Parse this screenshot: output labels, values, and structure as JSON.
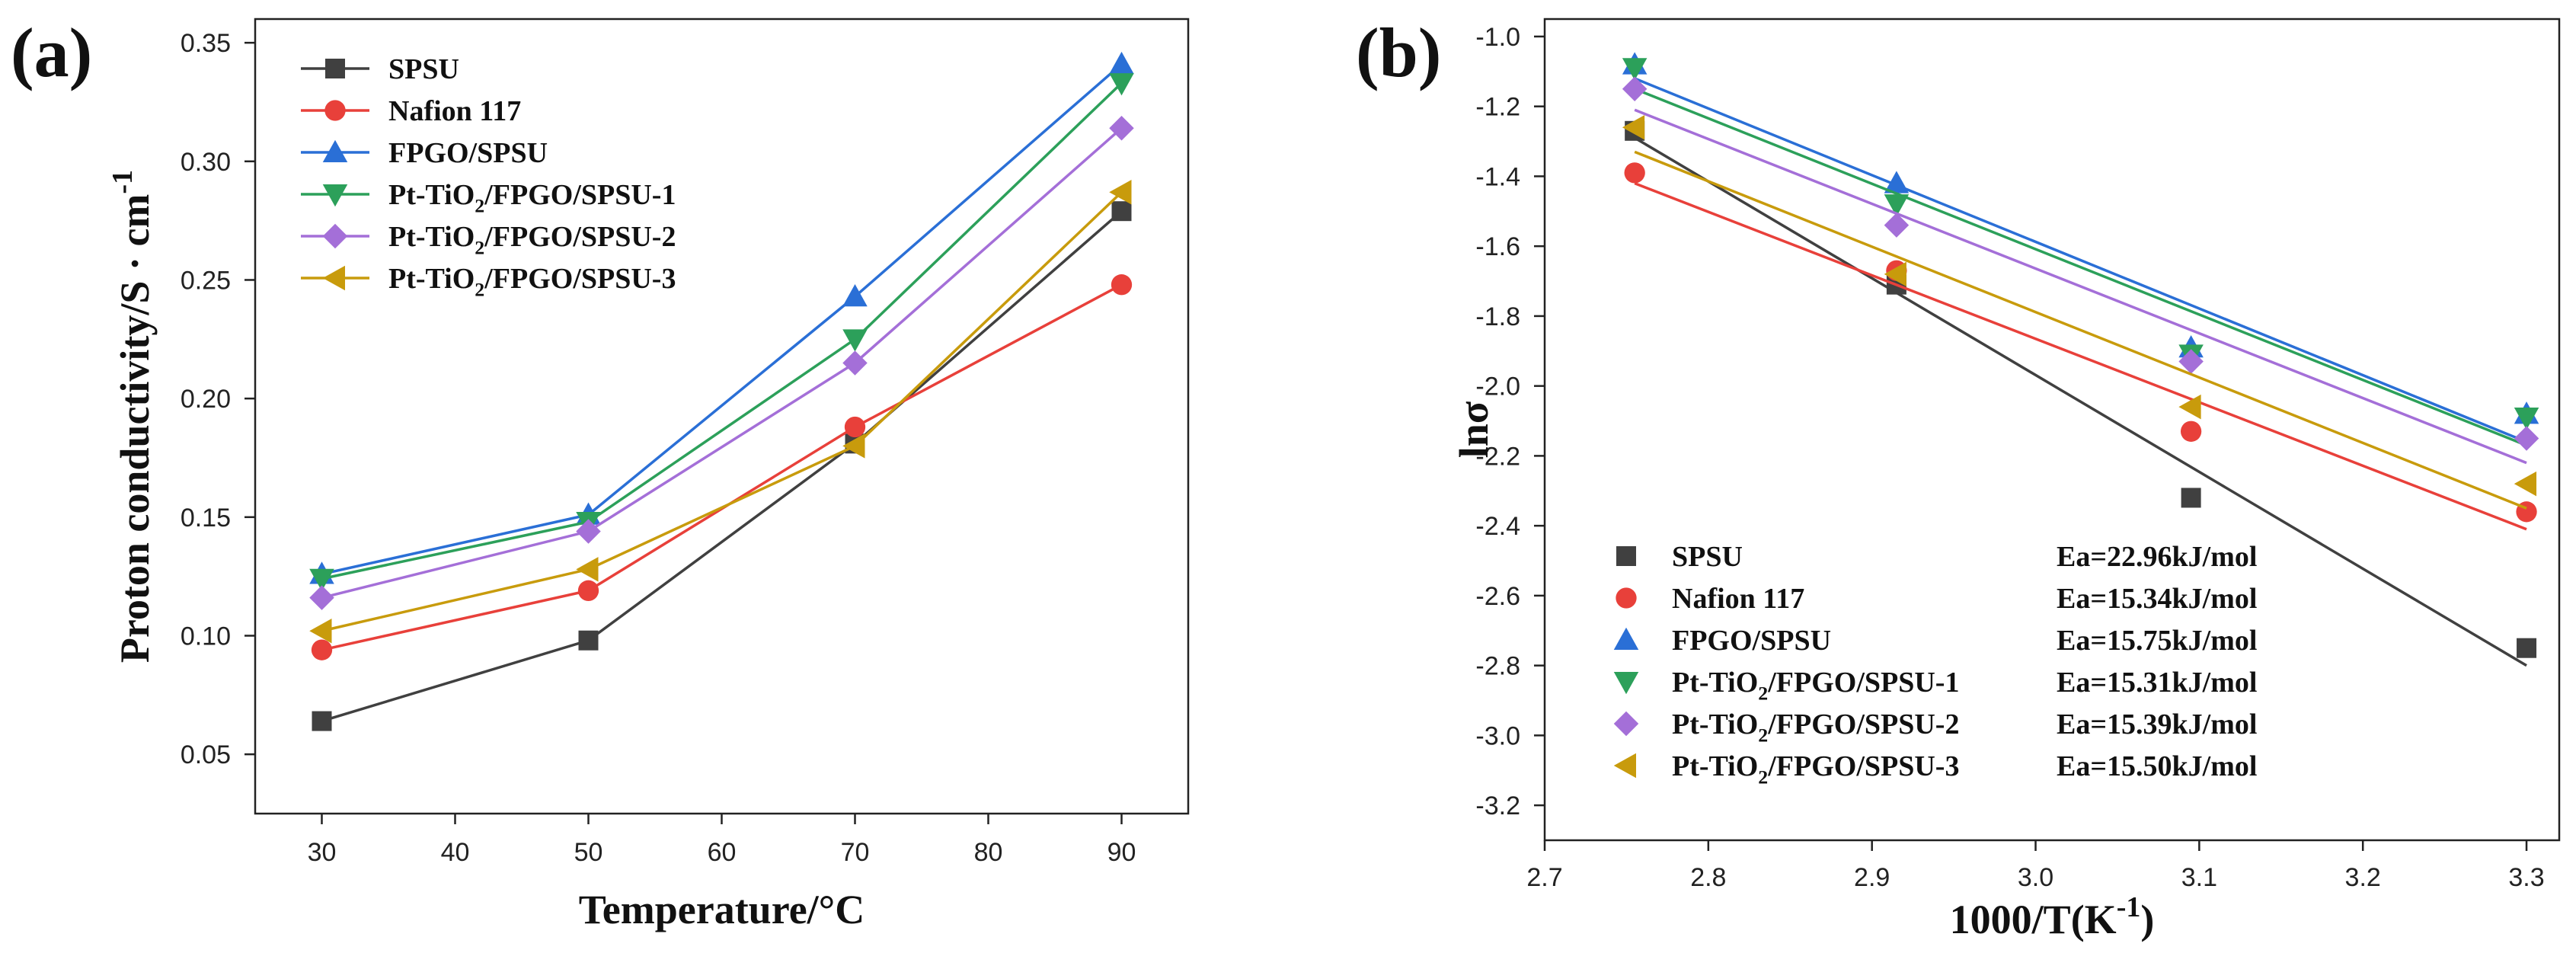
{
  "colors": {
    "SPSU": "#404040",
    "Nafion 117": "#e8403a",
    "FPGO/SPSU": "#2a6fd6",
    "Pt-TiO2/FPGO/SPSU-1": "#2ca05a",
    "Pt-TiO2/FPGO/SPSU-2": "#a46fd8",
    "Pt-TiO2/FPGO/SPSU-3": "#c89b0c"
  },
  "chart_data": [
    {
      "panel_label": "(a)",
      "type": "line",
      "xlabel": "Temperature/°C",
      "ylabel": "Proton conductivity/S · cm",
      "ylabel_sup": "-1",
      "xlim": [
        25,
        95
      ],
      "ylim": [
        0.025,
        0.36
      ],
      "xticks": [
        30,
        40,
        50,
        60,
        70,
        80,
        90
      ],
      "yticks": [
        0.05,
        0.1,
        0.15,
        0.2,
        0.25,
        0.3,
        0.35
      ],
      "ytick_labels": [
        "0.05",
        "0.10",
        "0.15",
        "0.20",
        "0.25",
        "0.30",
        "0.35"
      ],
      "legend_position": "top-left",
      "x": [
        30,
        50,
        70,
        90
      ],
      "series": [
        {
          "name": "SPSU",
          "label_main": "SPSU",
          "label_tail": "",
          "marker": "square",
          "values": [
            0.064,
            0.098,
            0.181,
            0.279
          ]
        },
        {
          "name": "Nafion 117",
          "label_main": "Nafion 117",
          "label_tail": "",
          "marker": "circle",
          "values": [
            0.094,
            0.119,
            0.188,
            0.248
          ]
        },
        {
          "name": "FPGO/SPSU",
          "label_main": "FPGO/SPSU",
          "label_tail": "",
          "marker": "triangle-up",
          "values": [
            0.126,
            0.151,
            0.243,
            0.341
          ]
        },
        {
          "name": "Pt-TiO2/FPGO/SPSU-1",
          "label_main": "Pt-TiO",
          "label_sub": "2",
          "label_tail": "/FPGO/SPSU-1",
          "marker": "triangle-down",
          "values": [
            0.124,
            0.148,
            0.225,
            0.333
          ]
        },
        {
          "name": "Pt-TiO2/FPGO/SPSU-2",
          "label_main": "Pt-TiO",
          "label_sub": "2",
          "label_tail": "/FPGO/SPSU-2",
          "marker": "diamond",
          "values": [
            0.116,
            0.144,
            0.215,
            0.314
          ]
        },
        {
          "name": "Pt-TiO2/FPGO/SPSU-3",
          "label_main": "Pt-TiO",
          "label_sub": "2",
          "label_tail": "/FPGO/SPSU-3",
          "marker": "triangle-left",
          "values": [
            0.102,
            0.128,
            0.18,
            0.287
          ]
        }
      ]
    },
    {
      "panel_label": "(b)",
      "type": "scatter",
      "xlabel": "1000/T(K",
      "xlabel_sup": "-1",
      "xlabel_tail": ")",
      "ylabel": "lnσ",
      "xlim": [
        2.7,
        3.32
      ],
      "ylim": [
        -3.3,
        -0.95
      ],
      "xticks": [
        2.7,
        2.8,
        2.9,
        3.0,
        3.1,
        3.2,
        3.3
      ],
      "xtick_labels": [
        "2.7",
        "2.8",
        "2.9",
        "3.0",
        "3.1",
        "3.2",
        "3.3"
      ],
      "yticks": [
        -1.0,
        -1.2,
        -1.4,
        -1.6,
        -1.8,
        -2.0,
        -2.2,
        -2.4,
        -2.6,
        -2.8,
        -3.0,
        -3.2
      ],
      "ytick_labels": [
        "-1.0",
        "-1.2",
        "-1.4",
        "-1.6",
        "-1.8",
        "-2.0",
        "-2.2",
        "-2.4",
        "-2.6",
        "-2.8",
        "-3.0",
        "-3.2"
      ],
      "legend_position": "bottom-left",
      "x": [
        2.755,
        2.915,
        3.095,
        3.3
      ],
      "series": [
        {
          "name": "SPSU",
          "label_main": "SPSU",
          "label_tail": "",
          "marker": "square",
          "ea": "Ea=22.96kJ/mol",
          "values": [
            -1.27,
            -1.71,
            -2.32,
            -2.75
          ],
          "fit": [
            -1.29,
            -2.8
          ]
        },
        {
          "name": "Nafion 117",
          "label_main": "Nafion 117",
          "label_tail": "",
          "marker": "circle",
          "ea": "Ea=15.34kJ/mol",
          "values": [
            -1.39,
            -1.67,
            -2.13,
            -2.36
          ],
          "fit": [
            -1.42,
            -2.41
          ]
        },
        {
          "name": "FPGO/SPSU",
          "label_main": "FPGO/SPSU",
          "label_tail": "",
          "marker": "triangle-up",
          "ea": "Ea=15.75kJ/mol",
          "values": [
            -1.08,
            -1.42,
            -1.89,
            -2.08
          ],
          "fit": [
            -1.12,
            -2.16
          ]
        },
        {
          "name": "Pt-TiO2/FPGO/SPSU-1",
          "label_main": "Pt-TiO",
          "label_sub": "2",
          "label_tail": "/FPGO/SPSU-1",
          "marker": "triangle-down",
          "ea": "Ea=15.31kJ/mol",
          "values": [
            -1.09,
            -1.48,
            -1.91,
            -2.09
          ],
          "fit": [
            -1.15,
            -2.17
          ]
        },
        {
          "name": "Pt-TiO2/FPGO/SPSU-2",
          "label_main": "Pt-TiO",
          "label_sub": "2",
          "label_tail": "/FPGO/SPSU-2",
          "marker": "diamond",
          "ea": "Ea=15.39kJ/mol",
          "values": [
            -1.15,
            -1.54,
            -1.93,
            -2.15
          ],
          "fit": [
            -1.21,
            -2.22
          ]
        },
        {
          "name": "Pt-TiO2/FPGO/SPSU-3",
          "label_main": "Pt-TiO",
          "label_sub": "2",
          "label_tail": "/FPGO/SPSU-3",
          "marker": "triangle-left",
          "ea": "Ea=15.50kJ/mol",
          "values": [
            -1.26,
            -1.68,
            -2.06,
            -2.28
          ],
          "fit": [
            -1.33,
            -2.35
          ]
        }
      ]
    }
  ]
}
